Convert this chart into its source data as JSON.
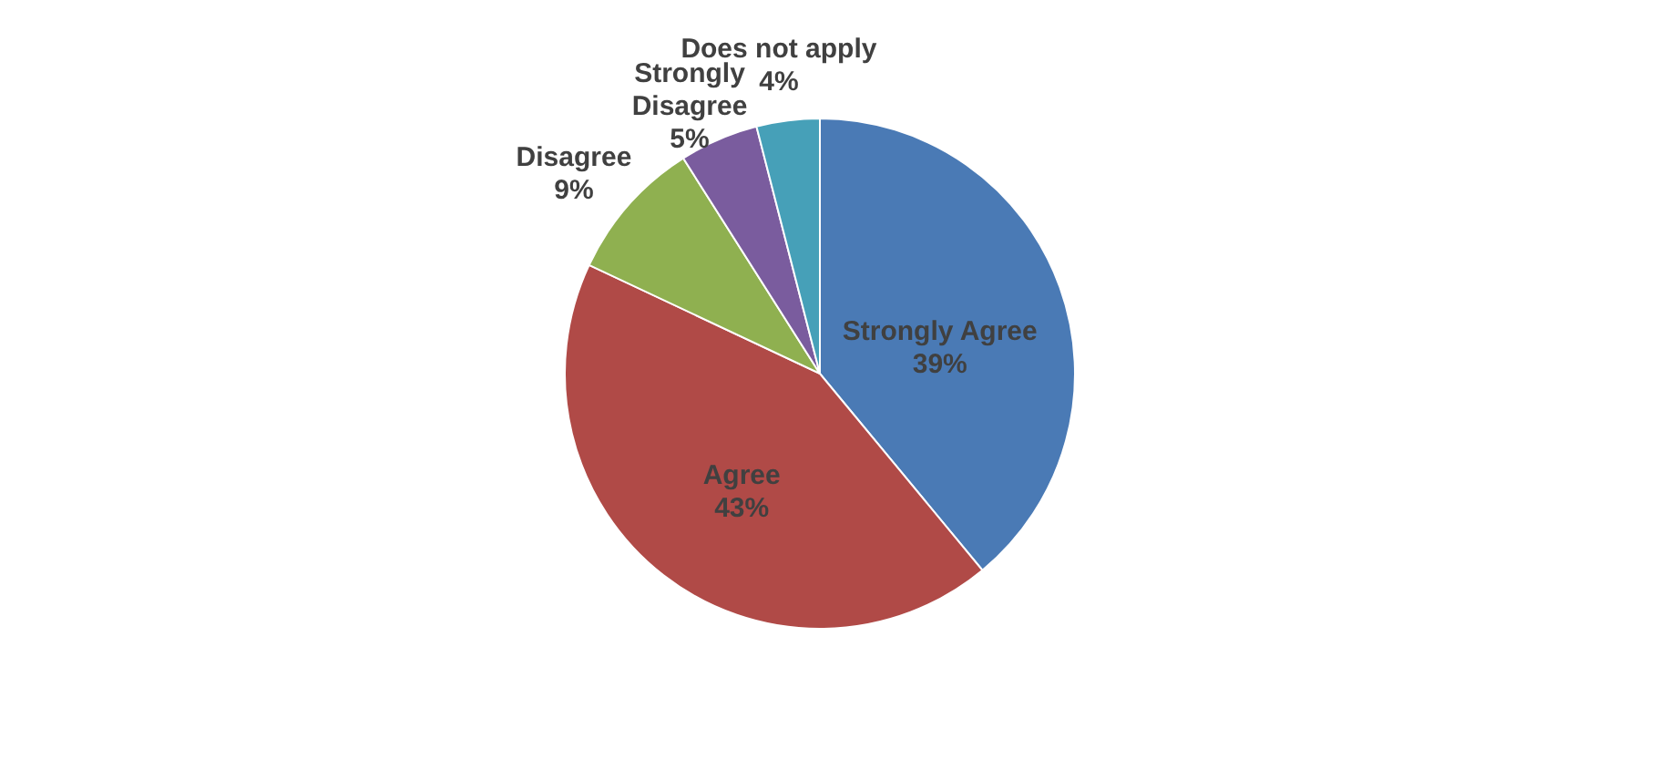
{
  "chart_data": {
    "type": "pie",
    "categories": [
      "Strongly Agree",
      "Agree",
      "Disagree",
      "Strongly Disagree",
      "Does not apply"
    ],
    "values": [
      39,
      43,
      9,
      5,
      4
    ],
    "colors": [
      "#4a7ab5",
      "#b04a47",
      "#8fb050",
      "#7a5c9e",
      "#46a0b8"
    ],
    "value_labels": [
      "39%",
      "43%",
      "9%",
      "5%",
      "4%"
    ],
    "legend": false
  }
}
